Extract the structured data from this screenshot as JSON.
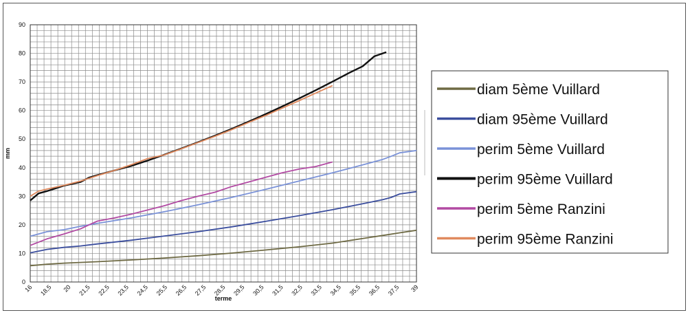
{
  "chart_data": {
    "type": "line",
    "xlabel": "terme",
    "ylabel": "mm",
    "xlim": [
      16,
      39
    ],
    "ylim": [
      0,
      90
    ],
    "yticks": [
      0,
      10,
      20,
      30,
      40,
      50,
      60,
      70,
      80,
      90
    ],
    "xtick_labels": [
      "16",
      "18,5",
      "20",
      "21,5",
      "22,5",
      "23,5",
      "24,5",
      "25,5",
      "26,5",
      "27,5",
      "28,5",
      "29,5",
      "30,5",
      "31,5",
      "32,5",
      "33,5",
      "34,5",
      "35,5",
      "36,5",
      "37,5",
      "39"
    ],
    "grid": true,
    "legend_position": "right",
    "series": [
      {
        "name": "diam 5ème Vuillard",
        "color": "#6e6a44",
        "points": [
          [
            16,
            5.7
          ],
          [
            17,
            6.2
          ],
          [
            18,
            6.6
          ],
          [
            20,
            7.1
          ],
          [
            22,
            7.7
          ],
          [
            24,
            8.4
          ],
          [
            26,
            9.2
          ],
          [
            28,
            10.1
          ],
          [
            30,
            11.2
          ],
          [
            32,
            12.3
          ],
          [
            34,
            13.6
          ],
          [
            36,
            15.4
          ],
          [
            37,
            16.3
          ],
          [
            38,
            17.2
          ],
          [
            39,
            18.1
          ]
        ]
      },
      {
        "name": "diam 95ème Vuillard",
        "color": "#3b4e9e",
        "points": [
          [
            16,
            10.2
          ],
          [
            17,
            11.4
          ],
          [
            18,
            12.1
          ],
          [
            19,
            12.6
          ],
          [
            20,
            13.3
          ],
          [
            22,
            14.6
          ],
          [
            24,
            16.1
          ],
          [
            26,
            17.6
          ],
          [
            28,
            19.3
          ],
          [
            30,
            21.2
          ],
          [
            32,
            23.2
          ],
          [
            34,
            25.3
          ],
          [
            36,
            27.6
          ],
          [
            37,
            28.8
          ],
          [
            37.5,
            29.6
          ],
          [
            38,
            30.8
          ],
          [
            39,
            31.6
          ]
        ]
      },
      {
        "name": "perim 5ème Vuillard",
        "color": "#7a92d8",
        "points": [
          [
            16,
            16.0
          ],
          [
            17,
            17.6
          ],
          [
            18,
            18.3
          ],
          [
            19,
            19.5
          ],
          [
            20,
            20.5
          ],
          [
            22,
            22.4
          ],
          [
            24,
            24.6
          ],
          [
            26,
            27.0
          ],
          [
            28,
            29.6
          ],
          [
            30,
            32.4
          ],
          [
            32,
            35.3
          ],
          [
            34,
            38.2
          ],
          [
            36,
            41.3
          ],
          [
            37,
            42.9
          ],
          [
            37.5,
            44.0
          ],
          [
            38,
            45.2
          ],
          [
            39,
            46.0
          ]
        ]
      },
      {
        "name": "perim 95ème Vuillard",
        "color": "#111111",
        "points": [
          [
            16,
            28.5
          ],
          [
            16.5,
            31.0
          ],
          [
            17,
            31.8
          ],
          [
            18,
            33.7
          ],
          [
            19,
            35.0
          ],
          [
            19.5,
            36.5
          ],
          [
            20,
            37.4
          ],
          [
            21,
            39.0
          ],
          [
            22,
            40.6
          ],
          [
            23,
            42.5
          ],
          [
            24,
            44.6
          ],
          [
            25,
            46.7
          ],
          [
            26,
            48.9
          ],
          [
            27,
            51.2
          ],
          [
            28,
            53.6
          ],
          [
            29,
            56.1
          ],
          [
            30,
            58.7
          ],
          [
            31,
            61.4
          ],
          [
            32,
            64.2
          ],
          [
            33,
            67.1
          ],
          [
            34,
            70.1
          ],
          [
            35,
            73.2
          ],
          [
            35.8,
            75.5
          ],
          [
            36.5,
            79.0
          ],
          [
            37.2,
            80.4
          ]
        ]
      },
      {
        "name": "perim 5ème Ranzini",
        "color": "#b24aa3",
        "points": [
          [
            16,
            12.8
          ],
          [
            17,
            15.1
          ],
          [
            18,
            16.8
          ],
          [
            19,
            18.6
          ],
          [
            19.5,
            20.0
          ],
          [
            20,
            21.3
          ],
          [
            21,
            22.4
          ],
          [
            22,
            23.7
          ],
          [
            23,
            25.2
          ],
          [
            24,
            26.7
          ],
          [
            25,
            28.5
          ],
          [
            26,
            30.0
          ],
          [
            27,
            31.4
          ],
          [
            28,
            33.4
          ],
          [
            29,
            35.0
          ],
          [
            30,
            36.6
          ],
          [
            31,
            38.2
          ],
          [
            32,
            39.5
          ],
          [
            33,
            40.4
          ],
          [
            34,
            42.0
          ]
        ]
      },
      {
        "name": "perim 95ème Ranzini",
        "color": "#e08a5e",
        "points": [
          [
            16,
            30.0
          ],
          [
            16.5,
            31.8
          ],
          [
            17,
            32.5
          ],
          [
            18,
            33.8
          ],
          [
            19,
            35.3
          ],
          [
            20,
            37.2
          ],
          [
            21,
            39.0
          ],
          [
            22,
            41.0
          ],
          [
            23,
            43.2
          ],
          [
            24,
            44.5
          ],
          [
            25,
            46.6
          ],
          [
            26,
            48.8
          ],
          [
            27,
            51.0
          ],
          [
            28,
            53.3
          ],
          [
            29,
            55.8
          ],
          [
            30,
            58.2
          ],
          [
            31,
            60.8
          ],
          [
            32,
            63.4
          ],
          [
            33,
            66.1
          ],
          [
            34,
            68.7
          ]
        ]
      }
    ]
  }
}
